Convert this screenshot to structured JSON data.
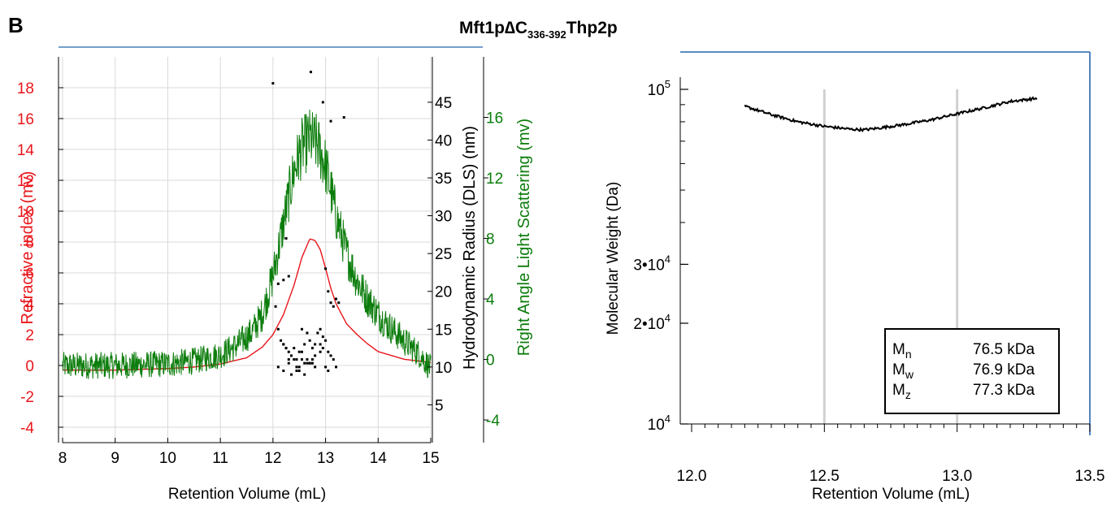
{
  "figure": {
    "panel_label": "B",
    "title_parts": {
      "main": "Mft1p∆C",
      "sub": "336-392",
      "tail": "Thp2p"
    }
  },
  "chart_data": [
    {
      "type": "line",
      "xlabel": "Retention Volume (mL)",
      "xlim": [
        8,
        15
      ],
      "x_ticks": [
        "8",
        "9",
        "10",
        "11",
        "12",
        "13",
        "14",
        "15"
      ],
      "grid": true,
      "axes": [
        {
          "id": "ri",
          "side": "left",
          "label": "Refractive index (mv)",
          "color": "#e8161b",
          "lim": [
            -5,
            20
          ],
          "ticks": [
            "-4",
            "-2",
            "0",
            "2",
            "4",
            "6",
            "8",
            "10",
            "12",
            "14",
            "16",
            "18"
          ],
          "tick_values": [
            -4,
            -2,
            0,
            2,
            4,
            6,
            8,
            10,
            12,
            14,
            16,
            18
          ]
        },
        {
          "id": "dls",
          "side": "right-1",
          "label": "Hydrodynamic Radius (DLS) (nm)",
          "color": "#000000",
          "lim": [
            0,
            51
          ],
          "ticks": [
            "5",
            "10",
            "15",
            "20",
            "25",
            "30",
            "35",
            "40",
            "45"
          ],
          "tick_values": [
            5,
            10,
            15,
            20,
            25,
            30,
            35,
            40,
            45
          ]
        },
        {
          "id": "rals",
          "side": "right-2",
          "label": "Right Angle Light Scattering (mv)",
          "color": "#0c7d0c",
          "lim": [
            -5.5,
            20
          ],
          "ticks": [
            "-4",
            "0",
            "4",
            "8",
            "12",
            "16"
          ],
          "tick_values": [
            -4,
            0,
            4,
            8,
            12,
            16
          ]
        }
      ],
      "series": [
        {
          "axis": "ri",
          "style": "line",
          "color": "#e8161b",
          "x": [
            8.0,
            9.0,
            10.0,
            10.5,
            11.0,
            11.5,
            11.8,
            12.0,
            12.2,
            12.4,
            12.55,
            12.7,
            12.8,
            12.9,
            13.0,
            13.1,
            13.2,
            13.4,
            13.6,
            13.8,
            14.0,
            14.5,
            15.0
          ],
          "y": [
            -0.3,
            -0.3,
            -0.2,
            -0.1,
            0.1,
            0.5,
            1.2,
            2.0,
            3.3,
            5.2,
            7.0,
            8.2,
            8.1,
            7.5,
            6.3,
            5.0,
            4.0,
            2.7,
            2.0,
            1.4,
            0.9,
            0.4,
            0.2
          ]
        },
        {
          "axis": "rals",
          "style": "noisy-line",
          "color": "#0c7d0c",
          "x": [
            8.0,
            9.0,
            10.0,
            10.5,
            11.0,
            11.3,
            11.6,
            11.8,
            12.0,
            12.2,
            12.4,
            12.55,
            12.7,
            12.85,
            13.0,
            13.1,
            13.2,
            13.4,
            13.6,
            13.8,
            14.0,
            14.2,
            14.5,
            14.8,
            15.0
          ],
          "y": [
            -0.4,
            -0.4,
            -0.3,
            -0.1,
            0.3,
            0.9,
            1.8,
            3.0,
            5.5,
            9.0,
            12.5,
            14.0,
            14.6,
            14.2,
            12.8,
            11.2,
            9.5,
            7.0,
            5.2,
            4.0,
            3.0,
            2.2,
            1.2,
            0.3,
            -0.6
          ]
        },
        {
          "axis": "dls",
          "style": "points",
          "color": "#000000",
          "x": [
            12.0,
            12.25,
            12.3,
            12.1,
            12.2,
            12.05,
            12.1,
            12.15,
            12.2,
            12.25,
            12.3,
            12.35,
            12.4,
            12.45,
            12.5,
            12.55,
            12.1,
            12.2,
            12.3,
            12.4,
            12.45,
            12.5,
            12.55,
            12.6,
            12.65,
            12.7,
            12.75,
            12.8,
            12.2,
            12.25,
            12.3,
            12.35,
            12.45,
            12.5,
            12.6,
            12.65,
            12.7,
            12.75,
            12.8,
            12.55,
            12.6,
            12.65,
            12.7,
            12.75,
            12.8,
            12.85,
            12.9,
            12.95,
            13.0,
            13.05,
            12.9,
            12.95,
            13.0,
            13.05,
            13.1,
            13.15,
            13.2,
            12.9,
            13.0,
            13.05,
            13.1,
            13.15,
            13.2,
            13.25,
            13.35,
            12.72,
            12.95,
            13.1
          ],
          "y": [
            47.5,
            27.0,
            22.0,
            21.0,
            21.5,
            18.0,
            15.0,
            13.5,
            13.0,
            12.5,
            12.0,
            11.5,
            12.5,
            11.0,
            12.0,
            11.0,
            10.0,
            9.5,
            10.5,
            11.0,
            10.0,
            9.5,
            12.0,
            10.5,
            11.0,
            10.5,
            11.0,
            10.0,
            13.0,
            12.5,
            11.0,
            9.0,
            9.5,
            10.0,
            9.0,
            10.5,
            10.5,
            10.5,
            11.5,
            15.0,
            13.0,
            14.5,
            13.5,
            12.5,
            13.0,
            14.5,
            13.0,
            12.5,
            10.0,
            9.5,
            15.0,
            14.0,
            13.5,
            12.0,
            11.5,
            11.0,
            10.0,
            12.0,
            23.0,
            20.0,
            18.5,
            18.0,
            19.0,
            18.5,
            43.0,
            49.0,
            45.0,
            42.5
          ]
        }
      ]
    },
    {
      "type": "line",
      "xlabel": "Retention Volume (mL)",
      "ylabel": "Molecular Weight (Da)",
      "xlim": [
        12.0,
        13.5
      ],
      "x_ticks": [
        "12.0",
        "12.5",
        "13.0",
        "13.5"
      ],
      "yscale": "log",
      "ylim": [
        10000,
        100000
      ],
      "y_ticks": [
        {
          "value": 100000,
          "base": "10",
          "exp": "5"
        },
        {
          "value": 30000,
          "base": "3•10",
          "exp": "4"
        },
        {
          "value": 20000,
          "base": "2•10",
          "exp": "4"
        },
        {
          "value": 10000,
          "base": "10",
          "exp": "4"
        }
      ],
      "vlines": [
        12.5,
        13.0
      ],
      "series": [
        {
          "color": "#000000",
          "x": [
            12.2,
            12.3,
            12.4,
            12.5,
            12.6,
            12.65,
            12.7,
            12.8,
            12.9,
            13.0,
            13.1,
            13.2,
            13.3
          ],
          "y": [
            89000,
            84000,
            80000,
            77500,
            76000,
            75700,
            76500,
            78500,
            81000,
            84500,
            88000,
            92000,
            94000
          ]
        }
      ],
      "legend": {
        "position": "bottom-right",
        "rows": [
          {
            "sym": "M",
            "sub": "n",
            "value": "76.5 kDa"
          },
          {
            "sym": "M",
            "sub": "w",
            "value": "76.9 kDa"
          },
          {
            "sym": "M",
            "sub": "z",
            "value": "77.3 kDa"
          }
        ]
      }
    }
  ]
}
